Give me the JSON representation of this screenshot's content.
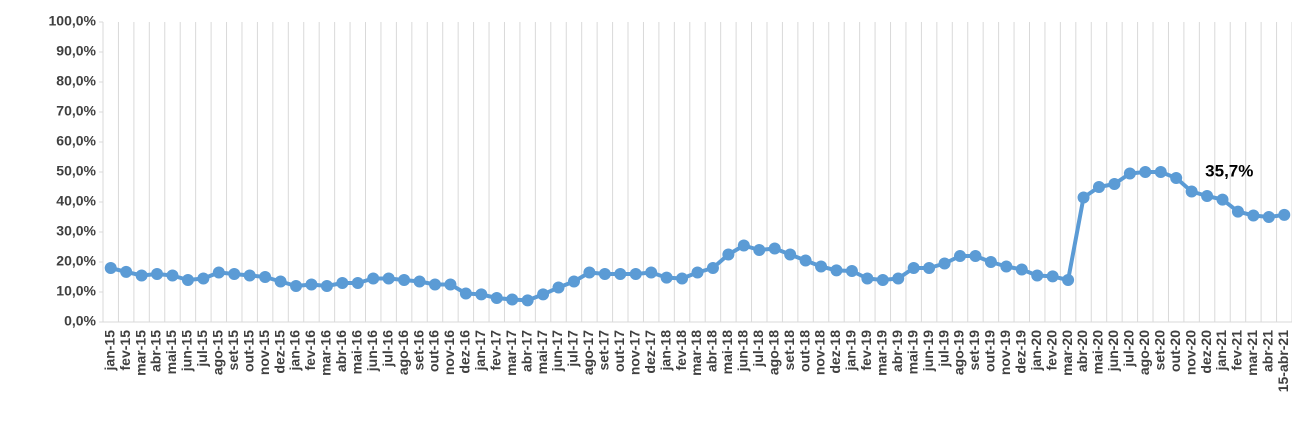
{
  "chart_data": {
    "type": "line",
    "categories": [
      "jan-15",
      "fev-15",
      "mar-15",
      "abr-15",
      "mai-15",
      "jun-15",
      "jul-15",
      "ago-15",
      "set-15",
      "out-15",
      "nov-15",
      "dez-15",
      "jan-16",
      "fev-16",
      "mar-16",
      "abr-16",
      "mai-16",
      "jun-16",
      "jul-16",
      "ago-16",
      "set-16",
      "out-16",
      "nov-16",
      "dez-16",
      "jan-17",
      "fev-17",
      "mar-17",
      "abr-17",
      "mai-17",
      "jun-17",
      "jul-17",
      "ago-17",
      "set-17",
      "out-17",
      "nov-17",
      "dez-17",
      "jan-18",
      "fev-18",
      "mar-18",
      "abr-18",
      "mai-18",
      "jun-18",
      "jul-18",
      "ago-18",
      "set-18",
      "out-18",
      "nov-18",
      "dez-18",
      "jan-19",
      "fev-19",
      "mar-19",
      "abr-19",
      "mai-19",
      "jun-19",
      "jul-19",
      "ago-19",
      "set-19",
      "out-19",
      "nov-19",
      "dez-19",
      "jan-20",
      "fev-20",
      "mar-20",
      "abr-20",
      "mai-20",
      "jun-20",
      "jul-20",
      "ago-20",
      "set-20",
      "out-20",
      "nov-20",
      "dez-20",
      "jan-21",
      "fev-21",
      "mar-21",
      "abr-21",
      "15-abr-21"
    ],
    "values": [
      18,
      16.7,
      15.5,
      16,
      15.5,
      14,
      14.5,
      16.5,
      16,
      15.5,
      15,
      13.5,
      12,
      12.5,
      12,
      13,
      13,
      14.5,
      14.5,
      14,
      13.5,
      12.5,
      12.5,
      9.5,
      9.2,
      8,
      7.5,
      7.2,
      9.2,
      11.5,
      13.5,
      16.5,
      16,
      16,
      16,
      16.5,
      14.8,
      14.5,
      16.5,
      18,
      22.5,
      25.5,
      24,
      24.5,
      22.5,
      20.5,
      18.5,
      17.2,
      17,
      14.5,
      14,
      14.5,
      18,
      18,
      19.5,
      22,
      22,
      20,
      18.5,
      17.5,
      15.5,
      15.2,
      14,
      41.5,
      45,
      46,
      49.5,
      50,
      50,
      48,
      43.5,
      42,
      40.8,
      36.8,
      35.5,
      35,
      35.7
    ],
    "value_labels": [
      null,
      null,
      null,
      null,
      null,
      null,
      null,
      null,
      null,
      null,
      null,
      null,
      null,
      null,
      null,
      null,
      null,
      null,
      null,
      null,
      null,
      null,
      null,
      null,
      null,
      null,
      null,
      null,
      null,
      null,
      null,
      null,
      null,
      null,
      null,
      null,
      null,
      null,
      null,
      null,
      null,
      null,
      null,
      null,
      null,
      null,
      null,
      null,
      null,
      null,
      null,
      null,
      null,
      null,
      null,
      null,
      null,
      null,
      null,
      null,
      null,
      null,
      null,
      null,
      null,
      null,
      null,
      null,
      null,
      null,
      null,
      null,
      null,
      null,
      null,
      null,
      "35,7%"
    ],
    "color": "#5b9bd5",
    "ylim": [
      0,
      100
    ],
    "yticks": [
      {
        "value": 0,
        "label": "0,0%"
      },
      {
        "value": 10,
        "label": "10,0%"
      },
      {
        "value": 20,
        "label": "20,0%"
      },
      {
        "value": 30,
        "label": "30,0%"
      },
      {
        "value": 40,
        "label": "40,0%"
      },
      {
        "value": 50,
        "label": "50,0%"
      },
      {
        "value": 60,
        "label": "60,0%"
      },
      {
        "value": 70,
        "label": "70,0%"
      },
      {
        "value": 80,
        "label": "80,0%"
      },
      {
        "value": 90,
        "label": "90,0%"
      },
      {
        "value": 100,
        "label": "100,0%"
      }
    ],
    "xgrid": true
  }
}
